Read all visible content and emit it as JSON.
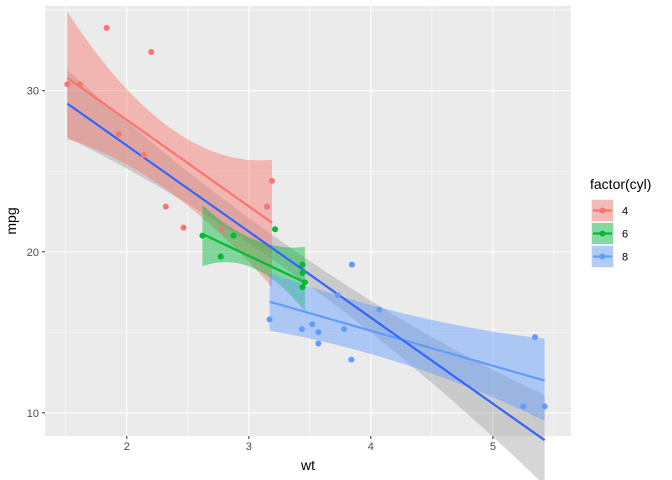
{
  "chart_data": {
    "type": "scatter",
    "xlabel": "wt",
    "ylabel": "mpg",
    "xlim": [
      1.33,
      5.64
    ],
    "ylim": [
      8.56,
      35.26
    ],
    "x_ticks": [
      2,
      3,
      4,
      5
    ],
    "y_ticks": [
      10,
      20,
      30
    ],
    "grid": true,
    "legend": {
      "title": "factor(cyl)",
      "placement": "right",
      "entries": [
        "4",
        "6",
        "8"
      ]
    },
    "series": [
      {
        "name": "4",
        "color": "#F8766D",
        "points": [
          [
            1.513,
            30.4
          ],
          [
            1.615,
            30.4
          ],
          [
            1.835,
            33.9
          ],
          [
            1.935,
            27.3
          ],
          [
            2.14,
            26.0
          ],
          [
            2.2,
            32.4
          ],
          [
            2.32,
            22.8
          ],
          [
            2.465,
            21.5
          ],
          [
            2.78,
            21.4
          ],
          [
            3.15,
            22.8
          ],
          [
            3.19,
            24.4
          ]
        ],
        "fit": {
          "x0": 1.513,
          "x1": 3.19,
          "y0": 30.8,
          "y1": 21.8
        },
        "band": {
          "upper": [
            [
              1.513,
              34.9
            ],
            [
              2.3,
              28.0
            ],
            [
              3.19,
              25.7
            ]
          ],
          "lower": [
            [
              1.513,
              27.0
            ],
            [
              2.3,
              24.0
            ],
            [
              3.19,
              17.8
            ]
          ]
        }
      },
      {
        "name": "6",
        "color": "#00BA38",
        "points": [
          [
            2.62,
            21.0
          ],
          [
            2.77,
            19.7
          ],
          [
            2.875,
            21.0
          ],
          [
            3.215,
            21.4
          ],
          [
            3.44,
            18.7
          ],
          [
            3.44,
            19.2
          ],
          [
            3.46,
            18.1
          ],
          [
            3.44,
            17.8
          ]
        ],
        "fit": {
          "x0": 2.62,
          "x1": 3.46,
          "y0": 21.1,
          "y1": 18.1
        },
        "band": {
          "upper": [
            [
              2.62,
              22.9
            ],
            [
              3.0,
              20.9
            ],
            [
              3.46,
              20.3
            ]
          ],
          "lower": [
            [
              2.62,
              19.1
            ],
            [
              3.0,
              19.1
            ],
            [
              3.46,
              16.3
            ]
          ]
        }
      },
      {
        "name": "8",
        "color": "#619CFF",
        "points": [
          [
            3.17,
            15.8
          ],
          [
            3.435,
            15.2
          ],
          [
            3.52,
            15.5
          ],
          [
            3.57,
            15.0
          ],
          [
            3.57,
            14.3
          ],
          [
            3.73,
            17.3
          ],
          [
            3.78,
            15.2
          ],
          [
            3.84,
            13.3
          ],
          [
            3.845,
            19.2
          ],
          [
            4.07,
            16.4
          ],
          [
            5.25,
            10.4
          ],
          [
            5.345,
            14.7
          ],
          [
            5.424,
            10.4
          ]
        ],
        "fit": {
          "x0": 3.17,
          "x1": 5.424,
          "y0": 16.9,
          "y1": 12.0
        },
        "band": {
          "upper": [
            [
              3.17,
              18.7
            ],
            [
              4.2,
              16.3
            ],
            [
              5.424,
              14.6
            ]
          ],
          "lower": [
            [
              3.17,
              15.1
            ],
            [
              4.2,
              13.2
            ],
            [
              5.424,
              9.5
            ]
          ]
        }
      }
    ],
    "overall_fit": {
      "color": "#3366FF",
      "x0": 1.513,
      "x1": 5.424,
      "y0": 29.2,
      "y1": 8.3,
      "band_color": "#999999",
      "band": {
        "upper": [
          [
            1.513,
            31.3
          ],
          [
            3.2,
            21.0
          ],
          [
            5.424,
            11.1
          ]
        ],
        "lower": [
          [
            1.513,
            27.1
          ],
          [
            3.2,
            19.5
          ],
          [
            5.424,
            5.5
          ]
        ]
      }
    }
  }
}
